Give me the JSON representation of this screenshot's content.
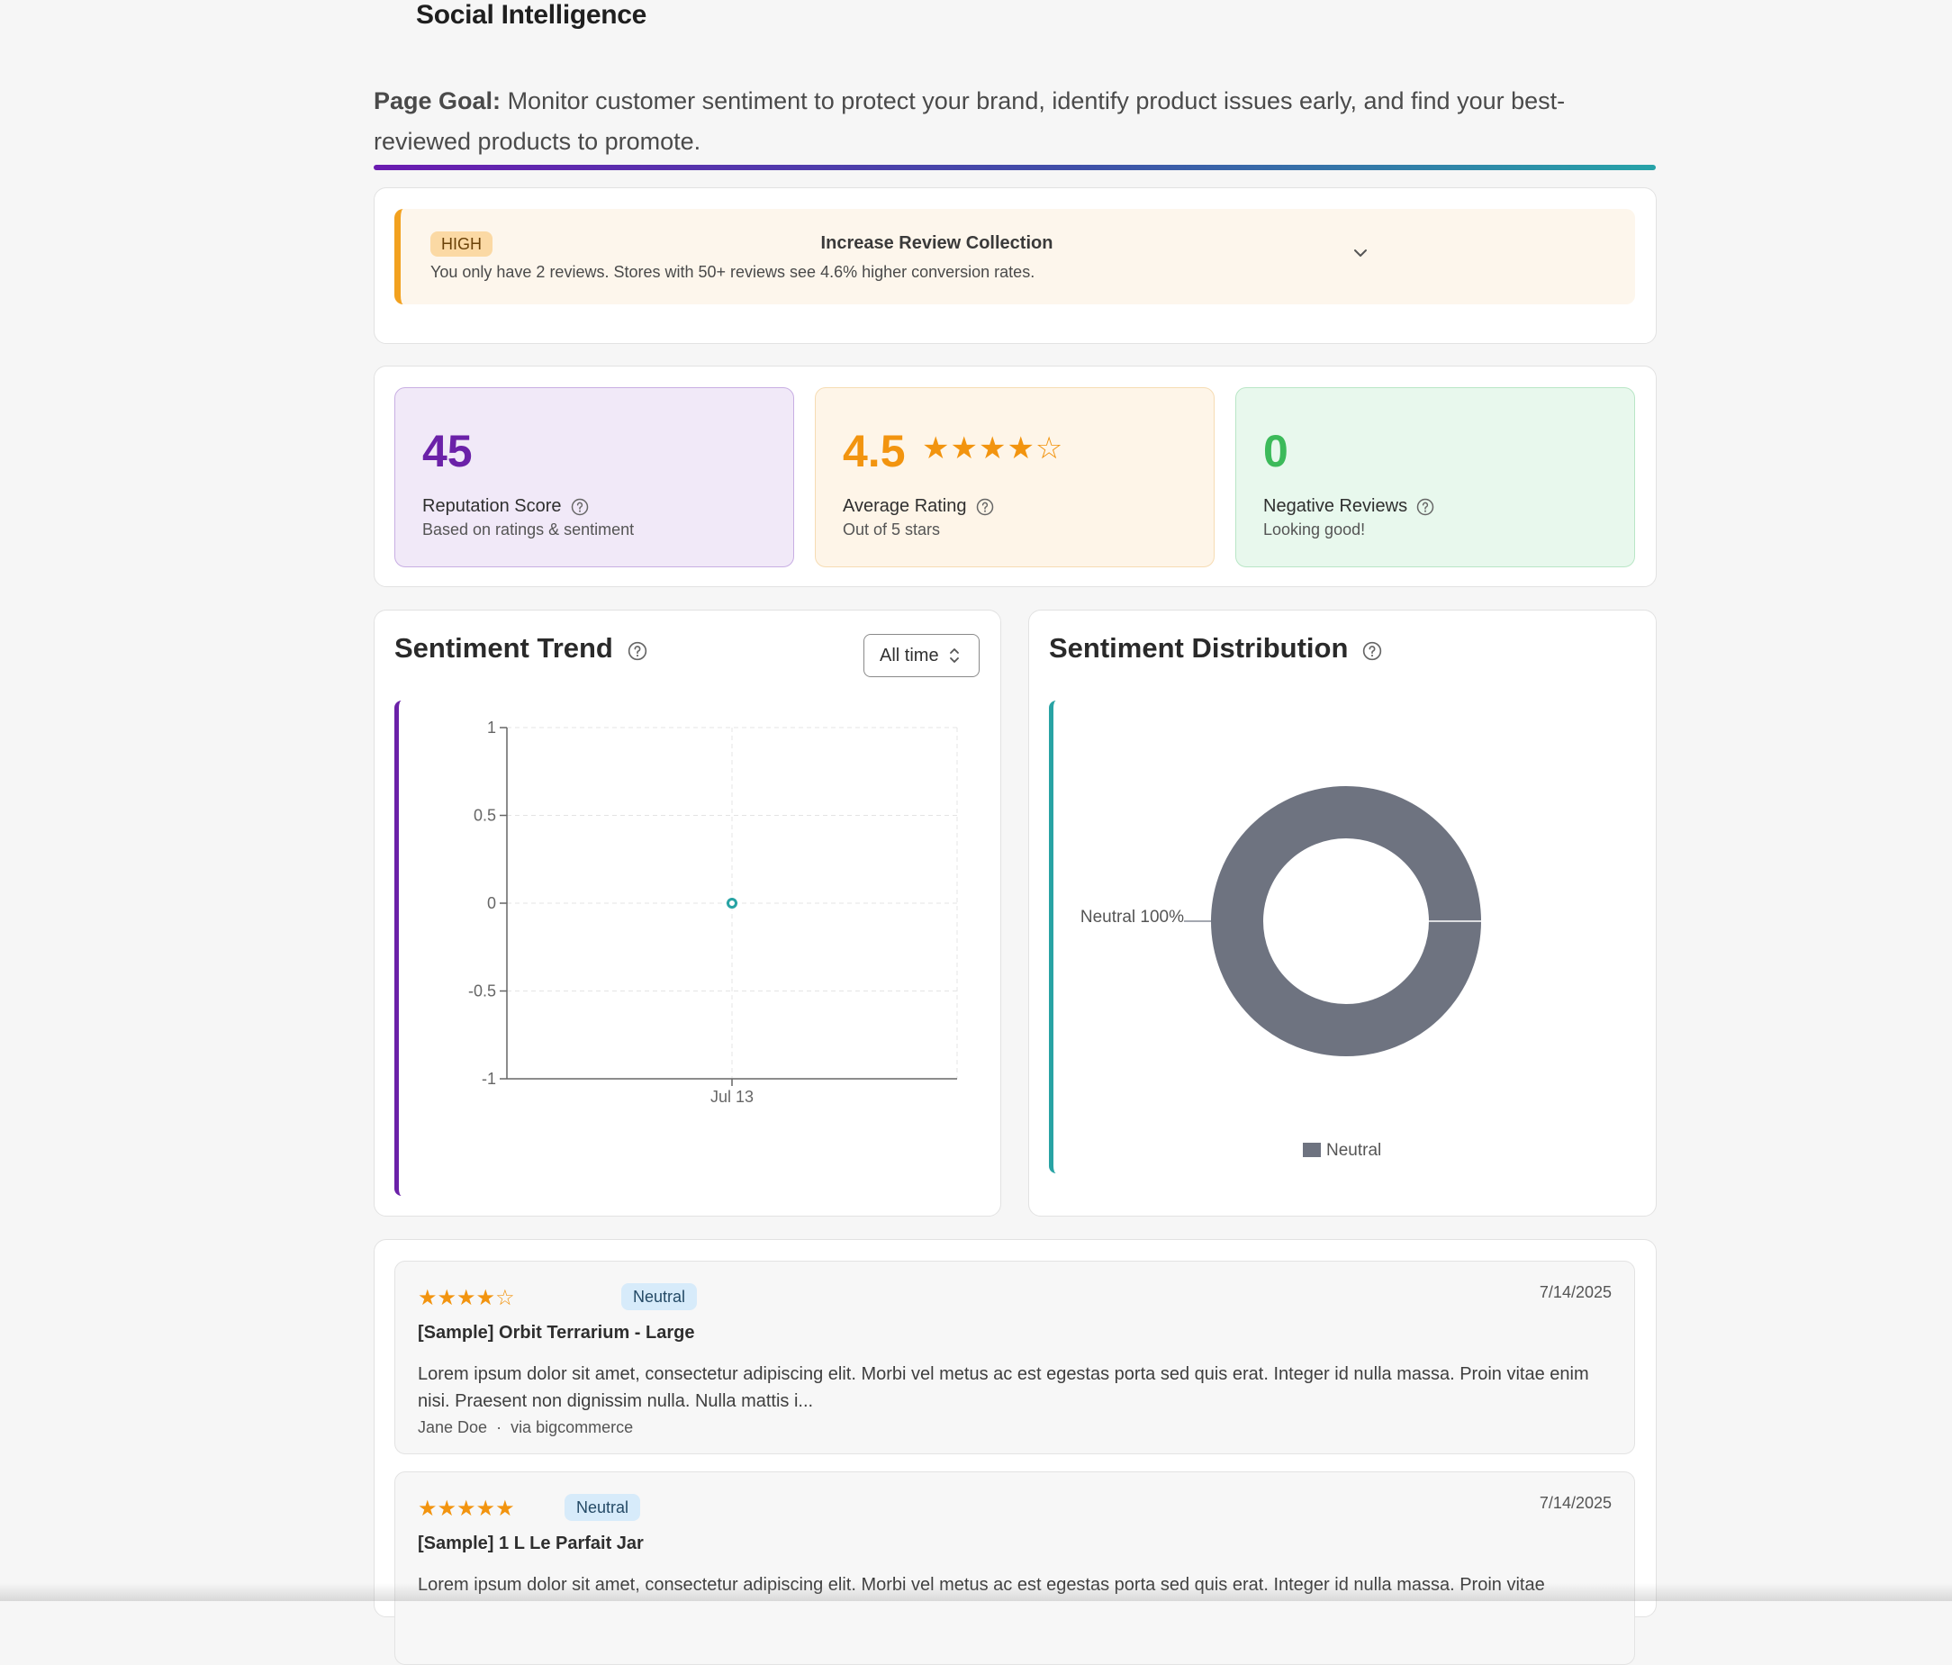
{
  "header": {
    "title": "Social Intelligence",
    "goal_label": "Page Goal:",
    "goal_text": "Monitor customer sentiment to protect your brand, identify product issues early, and find your best-reviewed products to promote."
  },
  "recommendation": {
    "priority": "HIGH",
    "title": "Increase Review Collection",
    "text": "You only have 2 reviews. Stores with 50+ reviews see 4.6% higher conversion rates.",
    "expand_icon": "chevron-down-icon"
  },
  "kpis": {
    "reputation": {
      "value": "45",
      "label": "Reputation Score",
      "sub": "Based on ratings & sentiment",
      "color": "#6b21a8"
    },
    "rating": {
      "value": "4.5",
      "stars": "★★★★☆",
      "rating_value": 4.5,
      "label": "Average Rating",
      "sub": "Out of 5 stars",
      "color": "#f2940f"
    },
    "negative": {
      "value": "0",
      "label": "Negative Reviews",
      "sub": "Looking good!",
      "color": "#3cba5a"
    }
  },
  "trend": {
    "title": "Sentiment Trend",
    "range_selected": "All time"
  },
  "distribution": {
    "title": "Sentiment Distribution"
  },
  "chart_data": [
    {
      "type": "line",
      "title": "Sentiment Trend",
      "x": [
        "Jul 13"
      ],
      "series": [
        {
          "values": [
            0
          ],
          "color": "#28a3a4"
        }
      ],
      "ylim": [
        -1,
        1
      ],
      "yticks": [
        "1",
        "0.5",
        "0",
        "-0.5",
        "-1"
      ],
      "grid": true
    },
    {
      "type": "pie",
      "title": "Sentiment Distribution",
      "donut": true,
      "slices": [
        {
          "name": "Neutral",
          "value": 100,
          "label": "Neutral 100%",
          "color": "#6e7380"
        }
      ],
      "legend": [
        "Neutral"
      ],
      "legend_position": "bottom"
    }
  ],
  "reviews": [
    {
      "stars": "★★★★☆",
      "rating": 4,
      "sentiment": "Neutral",
      "date": "7/14/2025",
      "product": "[Sample] Orbit Terrarium - Large",
      "body": "Lorem ipsum dolor sit amet, consectetur adipiscing elit. Morbi vel metus ac est egestas porta sed quis erat. Integer id nulla massa. Proin vitae enim nisi. Praesent non dignissim nulla. Nulla mattis i...",
      "author": "Jane Doe",
      "source": "via bigcommerce"
    },
    {
      "stars": "★★★★★",
      "rating": 5,
      "sentiment": "Neutral",
      "date": "7/14/2025",
      "product": "[Sample] 1 L Le Parfait Jar",
      "body": "Lorem ipsum dolor sit amet, consectetur adipiscing elit. Morbi vel metus ac est egestas porta sed quis erat. Integer id nulla massa. Proin vitae"
    }
  ]
}
